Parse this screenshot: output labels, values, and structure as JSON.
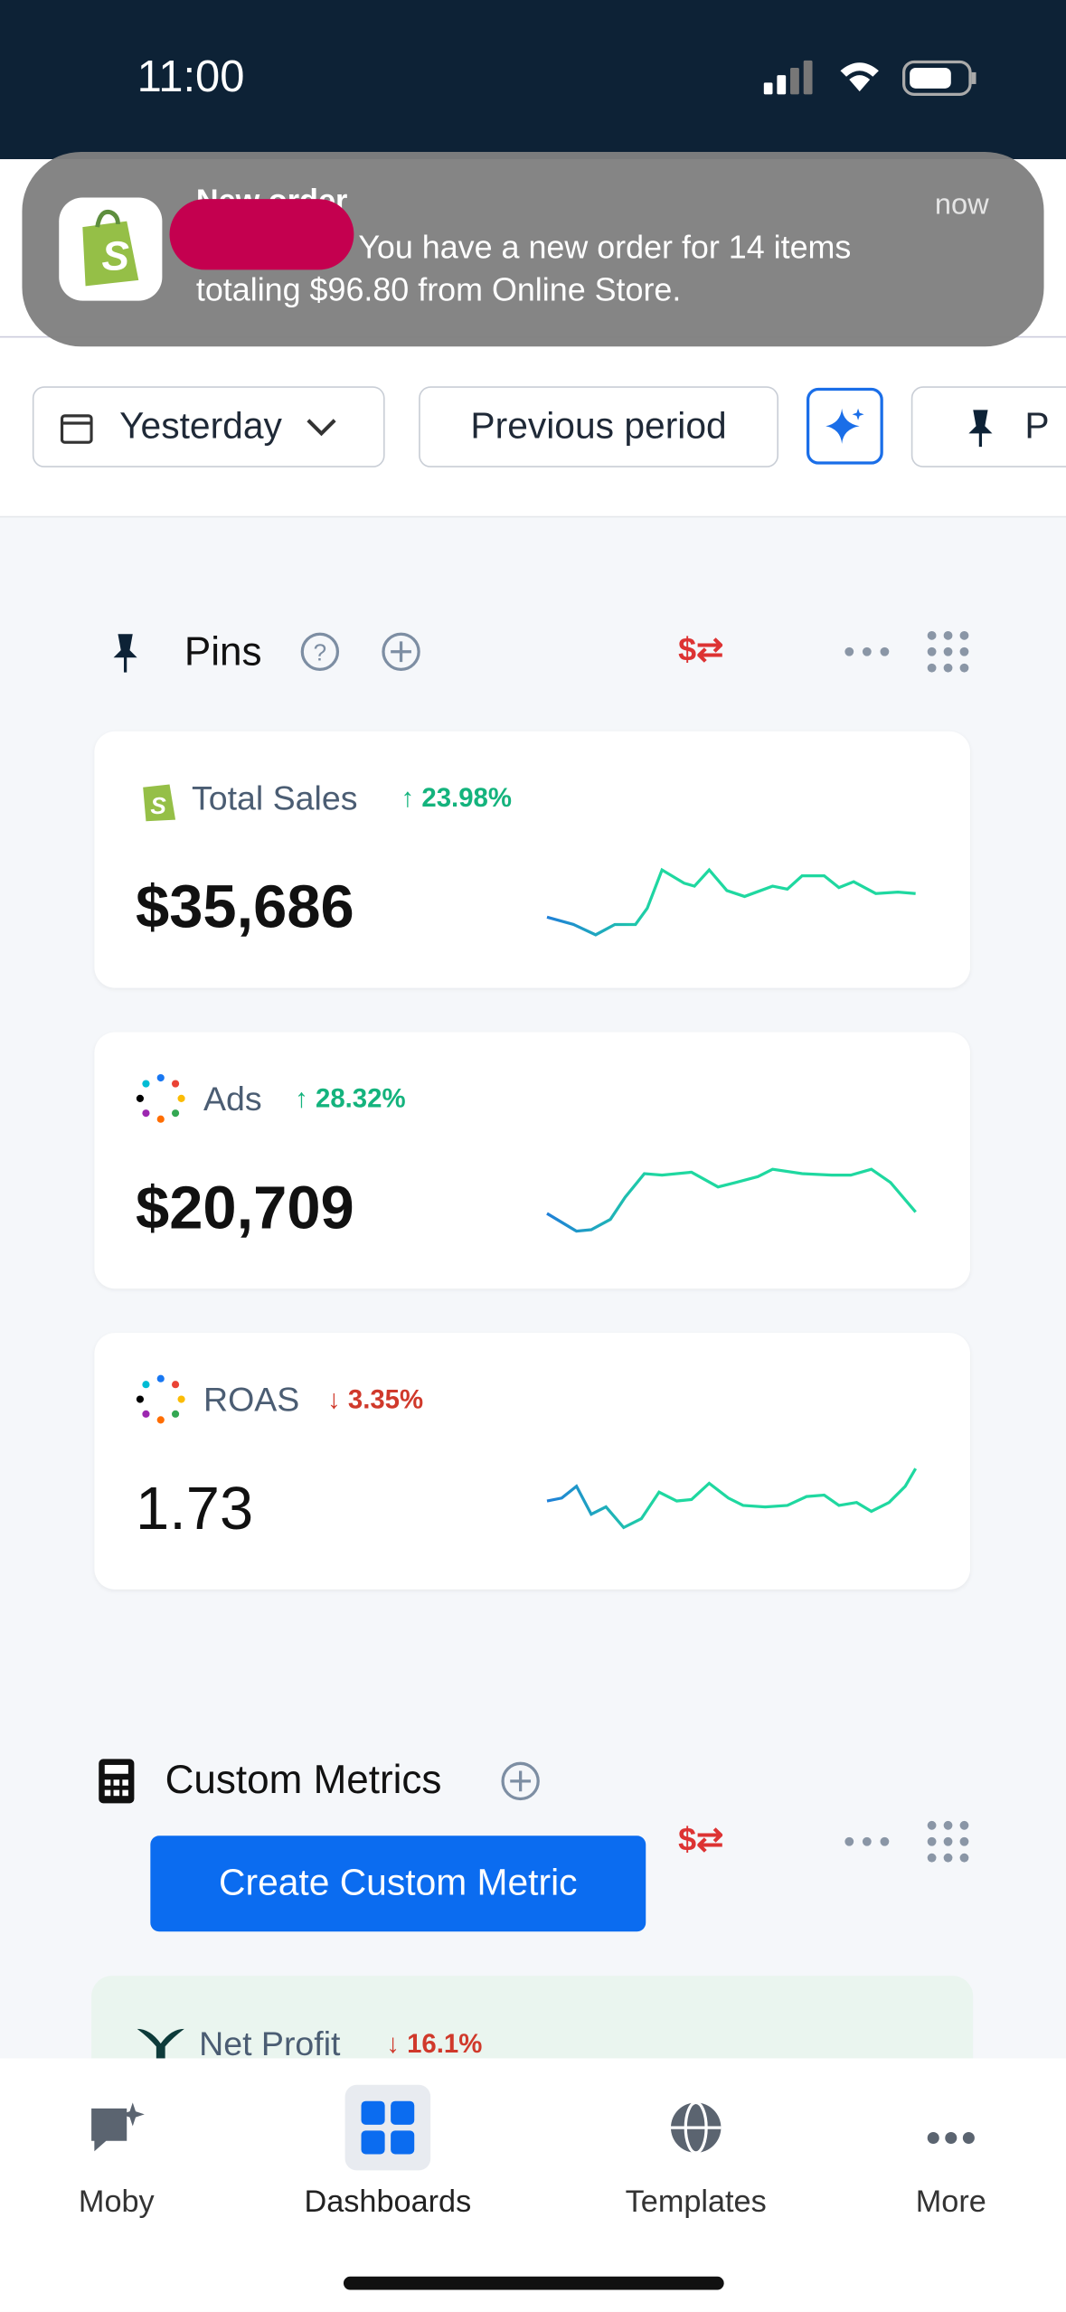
{
  "status_bar": {
    "time": "11:00"
  },
  "notification": {
    "title": "New order",
    "time": "now",
    "message": "You have a new order for 14 items totaling $96.80 from Online Store."
  },
  "filters": {
    "date": "Yesterday",
    "compare": "Previous period",
    "pin_label": "P"
  },
  "pins": {
    "title": "Pins",
    "cards": [
      {
        "title": "Total Sales",
        "change": "23.98%",
        "direction": "up",
        "value": "$35,686"
      },
      {
        "title": "Ads",
        "change": "28.32%",
        "direction": "up",
        "value": "$20,709"
      },
      {
        "title": "ROAS",
        "change": "3.35%",
        "direction": "down",
        "value": "1.73"
      }
    ]
  },
  "custom_metrics": {
    "title": "Custom Metrics",
    "button": "Create Custom Metric",
    "cards": [
      {
        "title": "Net Profit",
        "change": "16.1%",
        "direction": "down"
      }
    ]
  },
  "nav": {
    "items": [
      "Moby",
      "Dashboards",
      "Templates",
      "More"
    ],
    "active": 1
  }
}
